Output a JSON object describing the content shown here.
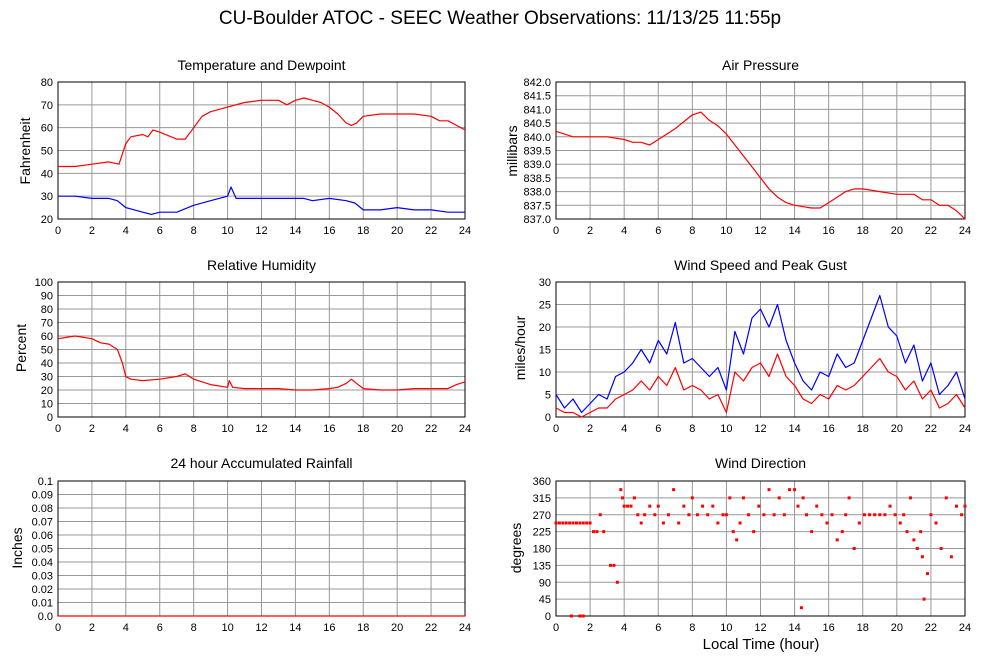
{
  "page": {
    "title": "CU-Boulder ATOC - SEEC Weather Observations: 11/13/25 11:55p",
    "xlabel": "Local Time (hour)"
  },
  "colors": {
    "red": "#ff0000",
    "blue": "#0000ff",
    "grid": "#999999"
  },
  "chart_data": [
    {
      "id": "temp",
      "type": "line",
      "title": "Temperature and Dewpoint",
      "ylabel": "Fahrenheit",
      "xlim": [
        0,
        24
      ],
      "ylim": [
        20,
        80
      ],
      "xticks": [
        0,
        2,
        4,
        6,
        8,
        10,
        12,
        14,
        16,
        18,
        20,
        22,
        24
      ],
      "yticks": [
        "20",
        "30",
        "40",
        "50",
        "60",
        "70",
        "80"
      ],
      "grid": true,
      "series": [
        {
          "color": "#ff0000",
          "x": [
            0,
            1,
            2,
            3,
            3.6,
            4,
            4.3,
            5,
            5.3,
            5.6,
            6,
            7,
            7.5,
            8,
            8.5,
            9,
            10,
            11,
            12,
            12.5,
            13,
            13.5,
            14,
            14.5,
            15,
            15.5,
            16,
            16.5,
            17,
            17.3,
            17.6,
            18,
            19,
            20,
            21,
            22,
            22.5,
            23,
            23.5,
            24
          ],
          "y": [
            43,
            43,
            44,
            45,
            44,
            53,
            56,
            57,
            56,
            59,
            58,
            55,
            55,
            60,
            65,
            67,
            69,
            71,
            72,
            72,
            72,
            70,
            72,
            73,
            72,
            71,
            69,
            66,
            62,
            61,
            62,
            65,
            66,
            66,
            66,
            65,
            63,
            63,
            61,
            59
          ]
        },
        {
          "color": "#0000ff",
          "x": [
            0,
            1,
            2,
            3,
            3.5,
            4,
            5,
            5.5,
            6,
            7,
            8,
            9,
            9.5,
            10,
            10.2,
            10.5,
            11,
            12,
            13,
            14,
            14.5,
            15,
            16,
            17,
            17.5,
            18,
            19,
            20,
            21,
            22,
            23,
            24
          ],
          "y": [
            30,
            30,
            29,
            29,
            28,
            25,
            23,
            22,
            23,
            23,
            26,
            28,
            29,
            30,
            34,
            29,
            29,
            29,
            29,
            29,
            29,
            28,
            29,
            28,
            27,
            24,
            24,
            25,
            24,
            24,
            23,
            23
          ]
        }
      ]
    },
    {
      "id": "pres",
      "type": "line",
      "title": "Air Pressure",
      "ylabel": "millibars",
      "xlim": [
        0,
        24
      ],
      "ylim": [
        837.0,
        842.0
      ],
      "xticks": [
        0,
        2,
        4,
        6,
        8,
        10,
        12,
        14,
        16,
        18,
        20,
        22,
        24
      ],
      "yticks": [
        "837.0",
        "837.5",
        "838.0",
        "838.5",
        "839.0",
        "839.5",
        "840.0",
        "840.5",
        "841.0",
        "841.5",
        "842.0"
      ],
      "grid": true,
      "series": [
        {
          "color": "#ff0000",
          "x": [
            0,
            0.5,
            1,
            2,
            3,
            4,
            4.5,
            5,
            5.5,
            6,
            7,
            8,
            8.5,
            9,
            9.5,
            10,
            10.5,
            11,
            11.5,
            12,
            12.5,
            13,
            13.5,
            14,
            15,
            15.5,
            16,
            17,
            17.5,
            18,
            19,
            20,
            21,
            21.5,
            22,
            22.5,
            23,
            23.5,
            24
          ],
          "y": [
            840.2,
            840.1,
            840.0,
            840.0,
            840.0,
            839.9,
            839.8,
            839.8,
            839.7,
            839.9,
            840.3,
            840.8,
            840.9,
            840.6,
            840.4,
            840.1,
            839.7,
            839.3,
            838.9,
            838.5,
            838.1,
            837.8,
            837.6,
            837.5,
            837.4,
            837.4,
            837.6,
            838.0,
            838.1,
            838.1,
            838.0,
            837.9,
            837.9,
            837.7,
            837.7,
            837.5,
            837.5,
            837.3,
            837.0
          ]
        }
      ]
    },
    {
      "id": "rh",
      "type": "line",
      "title": "Relative Humidity",
      "ylabel": "Percent",
      "xlim": [
        0,
        24
      ],
      "ylim": [
        0,
        100
      ],
      "xticks": [
        0,
        2,
        4,
        6,
        8,
        10,
        12,
        14,
        16,
        18,
        20,
        22,
        24
      ],
      "yticks": [
        "0",
        "10",
        "20",
        "30",
        "40",
        "50",
        "60",
        "70",
        "80",
        "90",
        "100"
      ],
      "grid": true,
      "series": [
        {
          "color": "#ff0000",
          "x": [
            0,
            1,
            2,
            2.5,
            3,
            3.5,
            3.8,
            4,
            4.3,
            5,
            6,
            7,
            7.5,
            8,
            9,
            10,
            10.1,
            10.3,
            11,
            12,
            13,
            14,
            15,
            16,
            16.5,
            17,
            17.3,
            17.6,
            18,
            19,
            20,
            21,
            22,
            23,
            23.5,
            24
          ],
          "y": [
            58,
            60,
            58,
            55,
            54,
            50,
            40,
            30,
            28,
            27,
            28,
            30,
            32,
            28,
            24,
            22,
            27,
            22,
            21,
            21,
            21,
            20,
            20,
            21,
            22,
            25,
            28,
            25,
            21,
            20,
            20,
            21,
            21,
            21,
            24,
            26
          ]
        }
      ]
    },
    {
      "id": "wind",
      "type": "line",
      "title": "Wind Speed and Peak Gust",
      "ylabel": "miles/hour",
      "xlim": [
        0,
        24
      ],
      "ylim": [
        0,
        30
      ],
      "xticks": [
        0,
        2,
        4,
        6,
        8,
        10,
        12,
        14,
        16,
        18,
        20,
        22,
        24
      ],
      "yticks": [
        "0",
        "5",
        "10",
        "15",
        "20",
        "25",
        "30"
      ],
      "grid": true,
      "series": [
        {
          "color": "#0000ff",
          "x": [
            0,
            0.5,
            1,
            1.5,
            2,
            2.5,
            3,
            3.5,
            4,
            4.5,
            5,
            5.5,
            6,
            6.5,
            7,
            7.5,
            8,
            8.5,
            9,
            9.5,
            10,
            10.5,
            11,
            11.5,
            12,
            12.5,
            13,
            13.5,
            14,
            14.5,
            15,
            15.5,
            16,
            16.5,
            17,
            17.5,
            18,
            18.5,
            19,
            19.5,
            20,
            20.5,
            21,
            21.5,
            22,
            22.5,
            23,
            23.5,
            24
          ],
          "y": [
            5,
            2,
            4,
            1,
            3,
            5,
            4,
            9,
            10,
            12,
            15,
            12,
            17,
            14,
            21,
            12,
            13,
            11,
            9,
            11,
            6,
            19,
            14,
            22,
            24,
            20,
            25,
            17,
            12,
            8,
            6,
            10,
            9,
            14,
            11,
            12,
            17,
            22,
            27,
            20,
            18,
            12,
            16,
            8,
            12,
            5,
            7,
            10,
            4
          ]
        },
        {
          "color": "#ff0000",
          "x": [
            0,
            0.5,
            1,
            1.5,
            2,
            2.5,
            3,
            3.5,
            4,
            4.5,
            5,
            5.5,
            6,
            6.5,
            7,
            7.5,
            8,
            8.5,
            9,
            9.5,
            10,
            10.5,
            11,
            11.5,
            12,
            12.5,
            13,
            13.5,
            14,
            14.5,
            15,
            15.5,
            16,
            16.5,
            17,
            17.5,
            18,
            18.5,
            19,
            19.5,
            20,
            20.5,
            21,
            21.5,
            22,
            22.5,
            23,
            23.5,
            24
          ],
          "y": [
            2,
            1,
            1,
            0,
            1,
            2,
            2,
            4,
            5,
            6,
            8,
            6,
            9,
            7,
            11,
            6,
            7,
            6,
            4,
            5,
            1,
            10,
            8,
            11,
            12,
            9,
            14,
            9,
            7,
            4,
            3,
            5,
            4,
            7,
            6,
            7,
            9,
            11,
            13,
            10,
            9,
            6,
            8,
            4,
            6,
            2,
            3,
            5,
            2
          ]
        }
      ]
    },
    {
      "id": "rain",
      "type": "line",
      "title": "24 hour Accumulated Rainfall",
      "ylabel": "Inches",
      "xlim": [
        0,
        24
      ],
      "ylim": [
        0.0,
        0.1
      ],
      "xticks": [
        0,
        2,
        4,
        6,
        8,
        10,
        12,
        14,
        16,
        18,
        20,
        22,
        24
      ],
      "yticks": [
        "0.0",
        "0.01",
        "0.02",
        "0.03",
        "0.04",
        "0.05",
        "0.06",
        "0.07",
        "0.08",
        "0.09",
        "0.1"
      ],
      "grid": true,
      "series": [
        {
          "color": "#ff0000",
          "x": [
            0,
            24
          ],
          "y": [
            0,
            0
          ]
        }
      ]
    },
    {
      "id": "dir",
      "type": "scatter",
      "title": "Wind Direction",
      "ylabel": "degrees",
      "xlim": [
        0,
        24
      ],
      "ylim": [
        0,
        360
      ],
      "xticks": [
        0,
        2,
        4,
        6,
        8,
        10,
        12,
        14,
        16,
        18,
        20,
        22,
        24
      ],
      "yticks": [
        "0",
        "45",
        "90",
        "135",
        "180",
        "225",
        "270",
        "315",
        "360"
      ],
      "grid": true,
      "series": [
        {
          "color": "#ff0000",
          "x": [
            0,
            0.2,
            0.4,
            0.6,
            0.8,
            1.0,
            1.2,
            1.4,
            1.6,
            1.8,
            2.0,
            0.9,
            1.4,
            1.6,
            2.2,
            2.4,
            2.6,
            2.8,
            3.2,
            3.4,
            3.6,
            3.8,
            3.9,
            4.0,
            4.2,
            4.4,
            4.6,
            4.8,
            5.0,
            5.2,
            5.5,
            5.8,
            6.0,
            6.3,
            6.6,
            6.9,
            7.2,
            7.5,
            7.8,
            8.0,
            8.3,
            8.6,
            8.9,
            9.2,
            9.5,
            9.8,
            10.0,
            10.2,
            10.4,
            10.6,
            10.8,
            11.0,
            11.3,
            11.6,
            11.9,
            12.2,
            12.5,
            12.8,
            13.1,
            13.4,
            13.7,
            14.0,
            14.2,
            14.4,
            14.5,
            14.7,
            15.0,
            15.3,
            15.6,
            15.9,
            16.2,
            16.5,
            16.8,
            17.0,
            17.2,
            17.5,
            17.8,
            18.1,
            18.4,
            18.7,
            19.0,
            19.3,
            19.6,
            19.9,
            20.2,
            20.4,
            20.6,
            20.8,
            21.0,
            21.2,
            21.4,
            21.5,
            21.6,
            21.8,
            22.0,
            22.3,
            22.6,
            22.9,
            23.2,
            23.5,
            23.8,
            24.0
          ],
          "y": [
            248,
            248,
            248,
            248,
            248,
            248,
            248,
            248,
            248,
            248,
            248,
            0,
            0,
            0,
            225,
            225,
            270,
            225,
            135,
            135,
            90,
            337,
            315,
            293,
            293,
            293,
            315,
            270,
            248,
            270,
            293,
            270,
            293,
            248,
            270,
            337,
            248,
            293,
            270,
            315,
            270,
            293,
            270,
            293,
            248,
            270,
            270,
            315,
            225,
            203,
            248,
            315,
            270,
            225,
            293,
            270,
            337,
            270,
            315,
            270,
            337,
            337,
            293,
            22,
            315,
            270,
            225,
            293,
            270,
            248,
            270,
            203,
            225,
            270,
            315,
            180,
            248,
            270,
            270,
            270,
            270,
            270,
            293,
            270,
            248,
            270,
            225,
            315,
            203,
            180,
            225,
            158,
            45,
            113,
            270,
            248,
            180,
            315,
            158,
            293,
            270,
            293
          ]
        }
      ]
    }
  ]
}
